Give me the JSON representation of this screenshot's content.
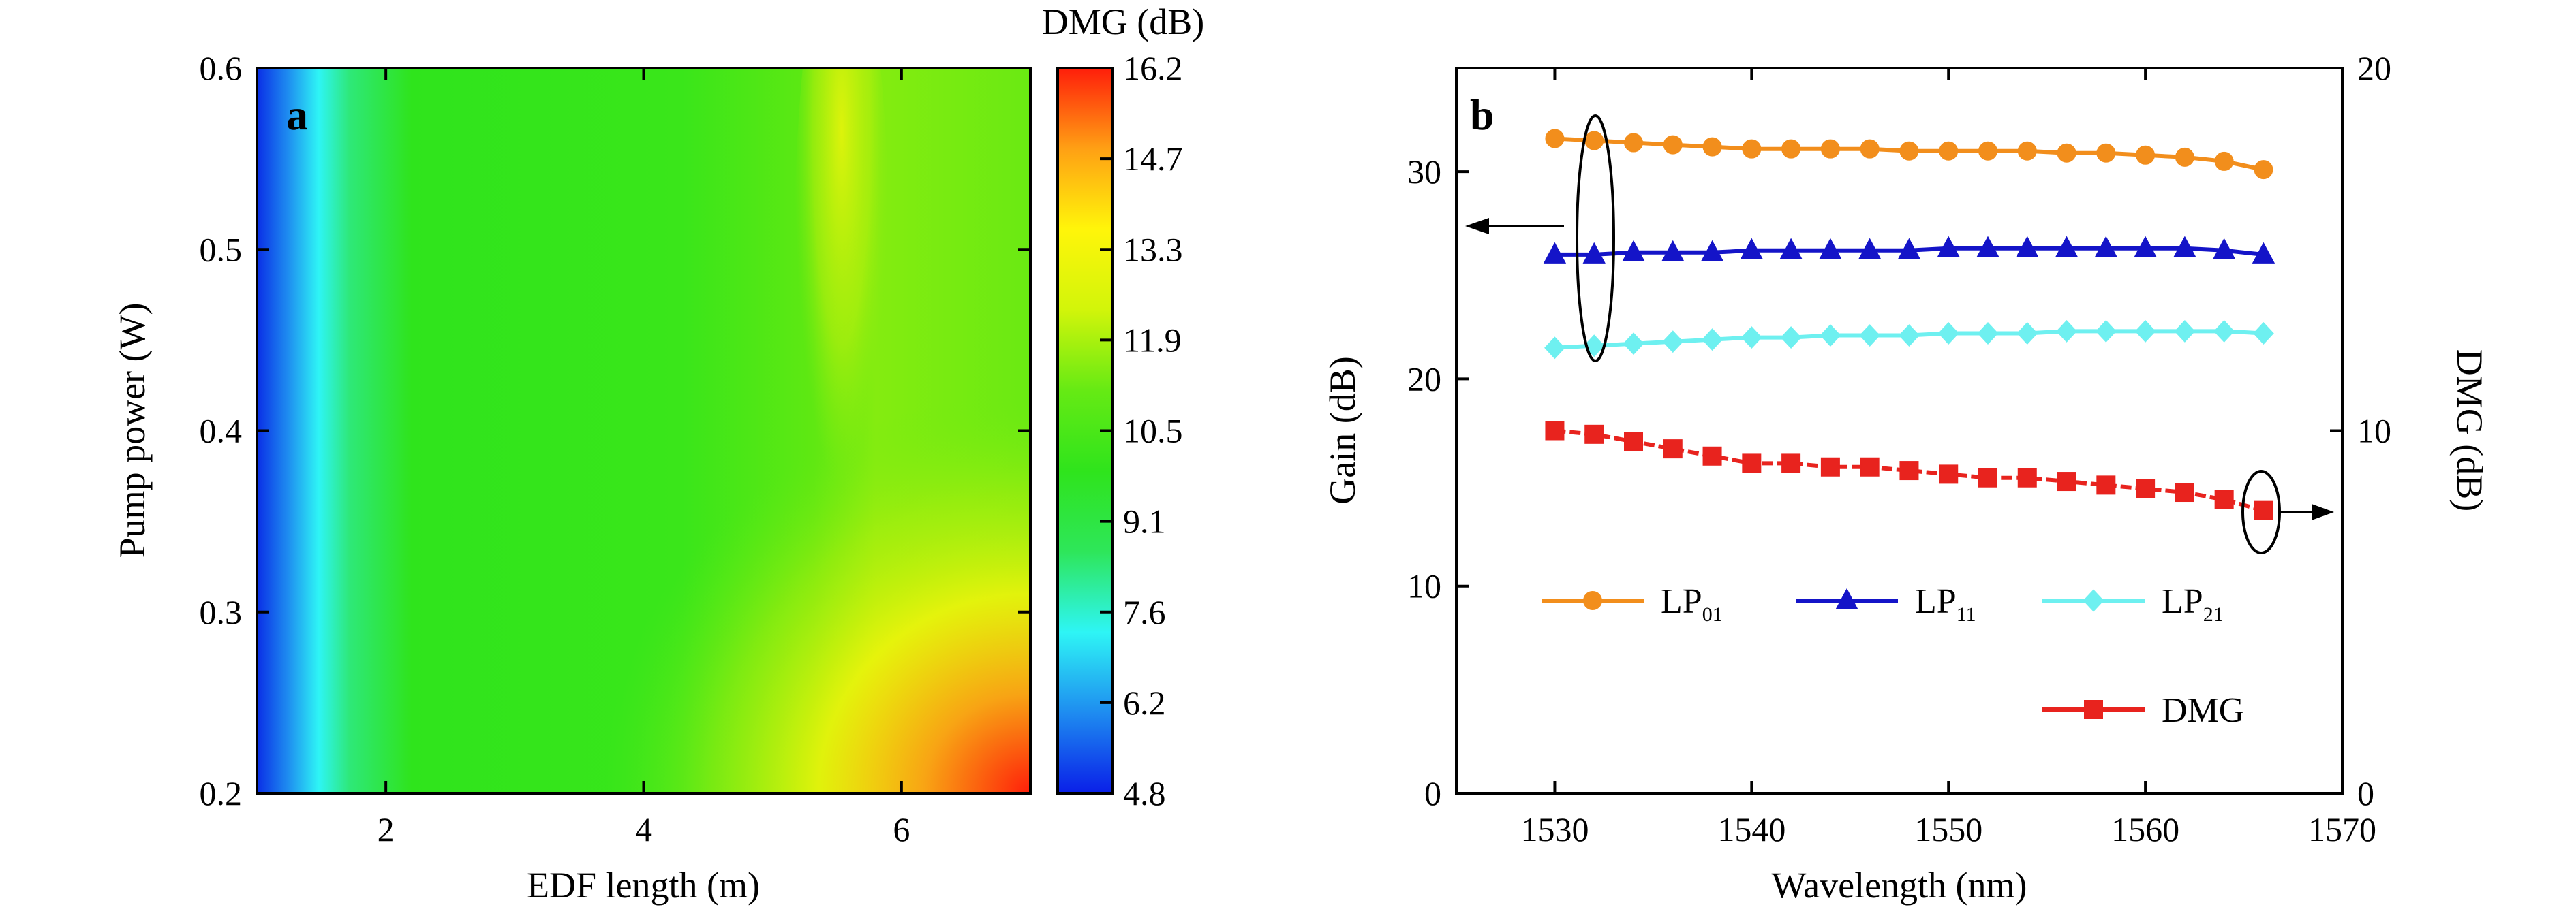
{
  "colors": {
    "lp01": "#f28e1c",
    "lp11": "#1414c8",
    "lp21": "#6ef0f0",
    "dmg": "#e8231e",
    "axis": "#000000",
    "colormap": [
      "#0a1fe8",
      "#1e8cf0",
      "#2ef5f5",
      "#2ee65a",
      "#2fe41c",
      "#66ea14",
      "#d2f50a",
      "#fff50a",
      "#ffa014",
      "#ff1e0a"
    ]
  },
  "chart_data": [
    {
      "type": "heatmap",
      "panel_label": "a",
      "title": "",
      "xlabel": "EDF length (m)",
      "ylabel": "Pump power (W)",
      "xlim": [
        1,
        7
      ],
      "ylim": [
        0.2,
        0.6
      ],
      "x_ticks": [
        2,
        4,
        6
      ],
      "y_ticks": [
        0.2,
        0.3,
        0.4,
        0.5,
        0.6
      ],
      "colorbar": {
        "title": "DMG (dB)",
        "range": [
          4.8,
          16.2
        ],
        "tick_labels": [
          "4.8",
          "6.2",
          "7.6",
          "9.1",
          "10.5",
          "11.9",
          "13.3",
          "14.7",
          "16.2"
        ]
      },
      "description_values": {
        "x": [
          1,
          2,
          3,
          4,
          5,
          6,
          7
        ],
        "y": [
          0.2,
          0.3,
          0.4,
          0.5,
          0.6
        ],
        "z": [
          [
            5.2,
            9.8,
            11.0,
            11.8,
            13.2,
            14.6,
            16.2
          ],
          [
            5.4,
            9.7,
            10.6,
            11.0,
            11.6,
            12.3,
            13.0
          ],
          [
            5.6,
            9.6,
            10.4,
            10.6,
            10.9,
            11.1,
            11.3
          ],
          [
            5.8,
            9.5,
            10.2,
            10.4,
            10.8,
            10.9,
            11.0
          ],
          [
            6.0,
            9.4,
            10.1,
            10.3,
            11.4,
            10.8,
            10.9
          ]
        ]
      }
    },
    {
      "type": "line",
      "panel_label": "b",
      "title": "",
      "xlabel": "Wavelength (nm)",
      "ylabel": "Gain (dB)",
      "y2label": "DMG (dB)",
      "xlim": [
        1525,
        1570
      ],
      "ylim": [
        0,
        35
      ],
      "y2lim": [
        0,
        20
      ],
      "x_ticks": [
        1530,
        1540,
        1550,
        1560,
        1570
      ],
      "y_ticks": [
        0,
        10,
        20,
        30
      ],
      "y2_ticks": [
        0,
        10,
        20
      ],
      "x": [
        1530,
        1532,
        1534,
        1536,
        1538,
        1540,
        1542,
        1544,
        1546,
        1548,
        1550,
        1552,
        1554,
        1556,
        1558,
        1560,
        1562,
        1564,
        1566
      ],
      "series": [
        {
          "name": "LP",
          "sub": "01",
          "axis": "left",
          "marker": "circle",
          "values": [
            31.6,
            31.5,
            31.4,
            31.3,
            31.2,
            31.1,
            31.1,
            31.1,
            31.1,
            31.0,
            31.0,
            31.0,
            31.0,
            30.9,
            30.9,
            30.8,
            30.7,
            30.5,
            30.1
          ]
        },
        {
          "name": "LP",
          "sub": "11",
          "axis": "left",
          "marker": "triangle",
          "values": [
            26.0,
            26.0,
            26.1,
            26.1,
            26.1,
            26.2,
            26.2,
            26.2,
            26.2,
            26.2,
            26.3,
            26.3,
            26.3,
            26.3,
            26.3,
            26.3,
            26.3,
            26.2,
            26.0
          ]
        },
        {
          "name": "LP",
          "sub": "21",
          "axis": "left",
          "marker": "diamond",
          "values": [
            21.5,
            21.6,
            21.7,
            21.8,
            21.9,
            22.0,
            22.0,
            22.1,
            22.1,
            22.1,
            22.2,
            22.2,
            22.2,
            22.3,
            22.3,
            22.3,
            22.3,
            22.3,
            22.2
          ]
        },
        {
          "name": "DMG",
          "axis": "right",
          "marker": "square",
          "values": [
            10.0,
            9.9,
            9.7,
            9.5,
            9.3,
            9.1,
            9.1,
            9.0,
            9.0,
            8.9,
            8.8,
            8.7,
            8.7,
            8.6,
            8.5,
            8.4,
            8.3,
            8.1,
            7.8
          ]
        }
      ]
    }
  ]
}
